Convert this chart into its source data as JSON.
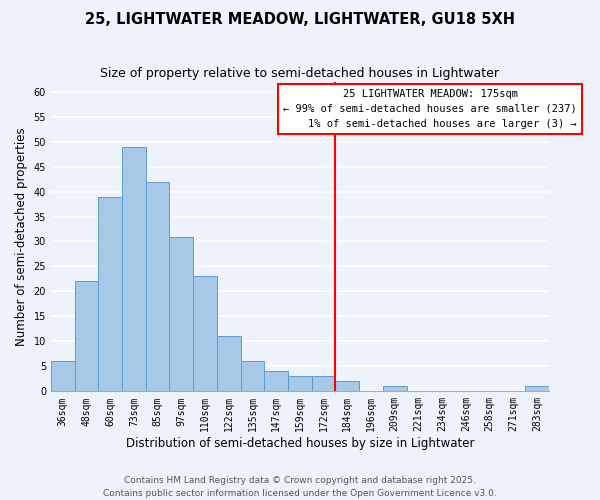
{
  "title": "25, LIGHTWATER MEADOW, LIGHTWATER, GU18 5XH",
  "subtitle": "Size of property relative to semi-detached houses in Lightwater",
  "xlabel": "Distribution of semi-detached houses by size in Lightwater",
  "ylabel": "Number of semi-detached properties",
  "bin_labels": [
    "36sqm",
    "48sqm",
    "60sqm",
    "73sqm",
    "85sqm",
    "97sqm",
    "110sqm",
    "122sqm",
    "135sqm",
    "147sqm",
    "159sqm",
    "172sqm",
    "184sqm",
    "196sqm",
    "209sqm",
    "221sqm",
    "234sqm",
    "246sqm",
    "258sqm",
    "271sqm",
    "283sqm"
  ],
  "bar_heights": [
    6,
    22,
    39,
    49,
    42,
    31,
    23,
    11,
    6,
    4,
    3,
    3,
    2,
    0,
    1,
    0,
    0,
    0,
    0,
    0,
    1
  ],
  "bar_color": "#a8c8e8",
  "bar_edge_color": "#5a9fd4",
  "vline_x_index": 11.5,
  "vline_color": "red",
  "annotation_text": "25 LIGHTWATER MEADOW: 175sqm\n← 99% of semi-detached houses are smaller (237)\n    1% of semi-detached houses are larger (3) →",
  "annotation_box_color": "white",
  "annotation_box_edge_color": "red",
  "ylim": [
    0,
    62
  ],
  "yticks": [
    0,
    5,
    10,
    15,
    20,
    25,
    30,
    35,
    40,
    45,
    50,
    55,
    60
  ],
  "background_color": "#eef2fa",
  "grid_color": "white",
  "footer_line1": "Contains HM Land Registry data © Crown copyright and database right 2025.",
  "footer_line2": "Contains public sector information licensed under the Open Government Licence v3.0.",
  "title_fontsize": 10.5,
  "subtitle_fontsize": 9,
  "axis_label_fontsize": 8.5,
  "tick_fontsize": 7,
  "annotation_fontsize": 7.5,
  "footer_fontsize": 6.5
}
